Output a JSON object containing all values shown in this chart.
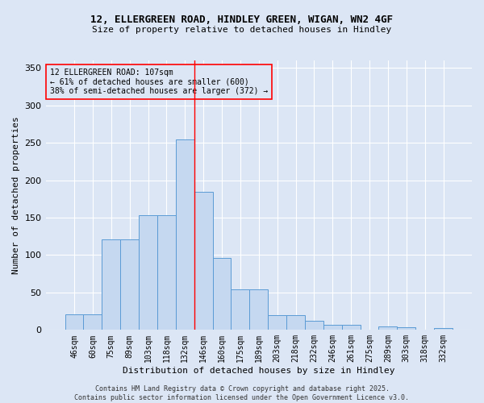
{
  "title_line1": "12, ELLERGREEN ROAD, HINDLEY GREEN, WIGAN, WN2 4GF",
  "title_line2": "Size of property relative to detached houses in Hindley",
  "xlabel": "Distribution of detached houses by size in Hindley",
  "ylabel": "Number of detached properties",
  "categories": [
    "46sqm",
    "60sqm",
    "75sqm",
    "89sqm",
    "103sqm",
    "118sqm",
    "132sqm",
    "146sqm",
    "160sqm",
    "175sqm",
    "189sqm",
    "203sqm",
    "218sqm",
    "232sqm",
    "246sqm",
    "261sqm",
    "275sqm",
    "289sqm",
    "303sqm",
    "318sqm",
    "332sqm"
  ],
  "values": [
    21,
    21,
    121,
    121,
    153,
    153,
    255,
    184,
    96,
    54,
    54,
    20,
    20,
    12,
    7,
    7,
    0,
    5,
    4,
    0,
    2
  ],
  "bar_color": "#c5d8f0",
  "bar_edge_color": "#5b9bd5",
  "background_color": "#dce6f5",
  "grid_color": "#ffffff",
  "vline_x_index": 6,
  "vline_color": "red",
  "annotation_text": "12 ELLERGREEN ROAD: 107sqm\n← 61% of detached houses are smaller (600)\n38% of semi-detached houses are larger (372) →",
  "ylim": [
    0,
    360
  ],
  "yticks": [
    0,
    50,
    100,
    150,
    200,
    250,
    300,
    350
  ],
  "footer_text": "Contains HM Land Registry data © Crown copyright and database right 2025.\nContains public sector information licensed under the Open Government Licence v3.0."
}
